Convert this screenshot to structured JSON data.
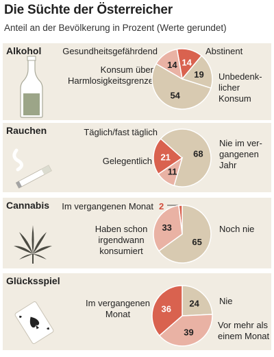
{
  "title": "Die Süchte der Österreicher",
  "subtitle": "Anteil an der Bevölkerung in Prozent (Werte gerundet)",
  "colors": {
    "red": "#d9624f",
    "pink": "#e9b2a4",
    "beige": "#d8cab1",
    "panel": "#f1ece2",
    "bottle": "#9ca588",
    "leaf": "#4b4a42"
  },
  "icons": {
    "alkohol": "bottle-icon",
    "rauchen": "cigarette-icon",
    "cannabis": "cannabis-leaf-icon",
    "gluecksspiel": "playing-card-icon"
  },
  "chart_data": [
    {
      "type": "pie",
      "title": "Alkohol",
      "slices": [
        {
          "label": "Gesundheitsgefährdend",
          "value": 14,
          "color": "#d9624f"
        },
        {
          "label": "Abstinent",
          "value": 19,
          "color": "#d8cab1"
        },
        {
          "label": "Unbedenklicher Konsum",
          "value": 54,
          "color": "#d8cab1"
        },
        {
          "label": "Konsum über Harmlosigkeitsgrenze",
          "value": 14,
          "color": "#e9b2a4"
        }
      ],
      "labels": {
        "a": "Gesundheitsgefährdend",
        "b": "Abstinent",
        "c1": "Unbedenk-",
        "c2": "licher",
        "c3": "Konsum",
        "d1": "Konsum über",
        "d2": "Harmlosigkeitsgrenze"
      }
    },
    {
      "type": "pie",
      "title": "Rauchen",
      "slices": [
        {
          "label": "Täglich/fast täglich",
          "value": 21,
          "color": "#d9624f"
        },
        {
          "label": "Nie im vergangenen Jahr",
          "value": 68,
          "color": "#d8cab1"
        },
        {
          "label": "Gelegentlich",
          "value": 11,
          "color": "#e9b2a4"
        }
      ],
      "labels": {
        "a": "Täglich/fast täglich",
        "b1": "Nie im ver-",
        "b2": "gangenen",
        "b3": "Jahr",
        "c": "Gelegentlich"
      }
    },
    {
      "type": "pie",
      "title": "Cannabis",
      "slices": [
        {
          "label": "Im vergangenen Monat",
          "value": 2,
          "color": "#d9624f"
        },
        {
          "label": "Noch nie",
          "value": 65,
          "color": "#d8cab1"
        },
        {
          "label": "Haben schon irgendwann konsumiert",
          "value": 33,
          "color": "#e9b2a4"
        }
      ],
      "labels": {
        "a": "Im vergangenen Monat",
        "b": "Noch nie",
        "c1": "Haben schon",
        "c2": "irgendwann",
        "c3": "konsumiert"
      }
    },
    {
      "type": "pie",
      "title": "Glücksspiel",
      "slices": [
        {
          "label": "Nie",
          "value": 24,
          "color": "#d8cab1"
        },
        {
          "label": "Vor mehr als einem Monat",
          "value": 39,
          "color": "#e9b2a4"
        },
        {
          "label": "Im vergangenen Monat",
          "value": 36,
          "color": "#d9624f"
        }
      ],
      "labels": {
        "a1": "Im vergangenen",
        "a2": "Monat",
        "b": "Nie",
        "c1": "Vor mehr als",
        "c2": "einem Monat"
      }
    }
  ]
}
